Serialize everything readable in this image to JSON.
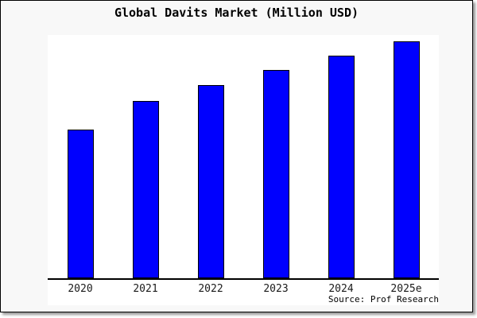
{
  "figure": {
    "background": "#f8f8f8",
    "border_color": "#000000",
    "plot_background": "#ffffff"
  },
  "title": "Global Davits Market (Million USD)",
  "source_note": "Source: Prof Research",
  "chart_data": {
    "type": "bar",
    "title": "Global Davits Market (Million USD)",
    "categories": [
      "2020",
      "2021",
      "2022",
      "2023",
      "2024",
      "2025e"
    ],
    "values": [
      61,
      73,
      79.5,
      85.5,
      91.5,
      97.5
    ],
    "xlabel": "",
    "ylabel": "",
    "ylim": [
      0,
      100
    ],
    "y_axis_labels_visible": false,
    "grid": false,
    "legend": "none",
    "bar_color": "#0000fe",
    "bar_border_color": "#000000",
    "source": "Source: Prof Research"
  }
}
